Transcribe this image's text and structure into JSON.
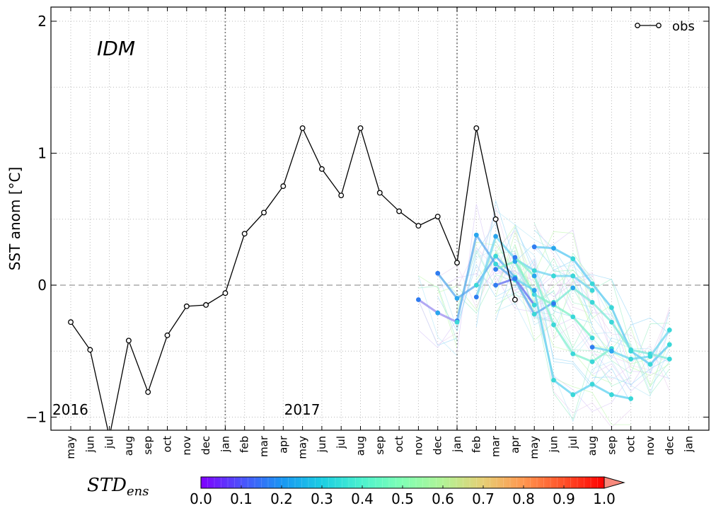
{
  "chart_data": {
    "type": "line",
    "title": "",
    "ylabel": "SST anom [$^\\circ$C]",
    "ylabel_display": "SST anom [°C]",
    "xlabel": "",
    "ylim": [
      -1.1,
      2.1
    ],
    "yticks": [
      -1,
      0,
      1,
      2
    ],
    "ytick_labels": [
      "−1",
      "0",
      "1",
      "2"
    ],
    "model_label": "IDM",
    "months": [
      "may",
      "jun",
      "jul",
      "aug",
      "sep",
      "oct",
      "nov",
      "dec",
      "jan",
      "feb",
      "mar",
      "apr",
      "may",
      "jun",
      "jul",
      "aug",
      "sep",
      "oct",
      "nov",
      "dec",
      "jan",
      "feb",
      "mar",
      "apr",
      "may",
      "jun",
      "jul",
      "aug",
      "sep",
      "oct",
      "nov",
      "dec",
      "jan"
    ],
    "year_markers": [
      {
        "label": "2016",
        "index": 0
      },
      {
        "label": "2017",
        "index": 12
      }
    ],
    "obs": {
      "name": "obs",
      "color": "#000000",
      "values": [
        -0.28,
        -0.49,
        -1.15,
        -0.42,
        -0.81,
        -0.38,
        -0.16,
        -0.15,
        -0.06,
        0.39,
        0.55,
        0.75,
        1.19,
        0.88,
        0.68,
        1.19,
        0.7,
        0.56,
        0.45,
        0.52,
        0.17,
        1.19,
        0.5,
        -0.11
      ]
    },
    "forecasts": [
      {
        "start": 19,
        "values": [
          0.09,
          -0.1,
          0.0,
          0.22,
          0.06
        ],
        "color": "#5aa9ee"
      },
      {
        "start": 20,
        "values": [
          -0.27,
          0.38,
          0.16,
          0.04,
          -0.22,
          -0.13
        ],
        "color": "#5aa9ee"
      },
      {
        "start": 21,
        "values": [
          -0.09,
          0.37,
          0.2,
          0.11,
          0.07,
          0.07,
          -0.04
        ],
        "color": "#6fd4f0"
      },
      {
        "start": 18,
        "values": [
          -0.11,
          -0.21,
          -0.28
        ],
        "color": "#9a8cf0"
      },
      {
        "start": 22,
        "values": [
          0.0,
          0.05,
          -0.15
        ],
        "color": "#5f6ff0"
      },
      {
        "start": 22,
        "values": [
          0.12,
          0.18,
          -0.07,
          -0.15,
          -0.24,
          -0.4
        ],
        "color": "#7ef0c6"
      },
      {
        "start": 23,
        "values": [
          0.21,
          0.07,
          -0.3,
          -0.52,
          -0.58,
          -0.48
        ],
        "color": "#82f0ce"
      },
      {
        "start": 24,
        "values": [
          0.29,
          0.28,
          0.2,
          0.01,
          -0.17,
          -0.5,
          -0.6,
          -0.45
        ],
        "color": "#5cc9f3"
      },
      {
        "start": 23,
        "values": [
          0.05,
          -0.04,
          -0.72,
          -0.83,
          -0.75,
          -0.83,
          -0.86
        ],
        "color": "#5cd2f0"
      },
      {
        "start": 25,
        "values": [
          -0.14,
          -0.02,
          -0.13,
          -0.28,
          -0.49,
          -0.52,
          -0.56
        ],
        "color": "#7ee8d8"
      },
      {
        "start": 27,
        "values": [
          -0.47,
          -0.5,
          -0.56,
          -0.54,
          -0.34
        ],
        "color": "#6ad6ee"
      }
    ],
    "legend": {
      "label": "obs",
      "position": "top-right"
    },
    "grid": true,
    "zero_line": true,
    "separators_at_months": [
      "jan",
      "jan"
    ]
  },
  "colorbar": {
    "label": "STD",
    "label_subscript": "ens",
    "min": 0.0,
    "max": 1.0,
    "ticks": [
      "0.0",
      "0.1",
      "0.2",
      "0.3",
      "0.4",
      "0.5",
      "0.6",
      "0.7",
      "0.8",
      "0.9",
      "1.0"
    ],
    "colormap": "rainbow",
    "extend": "max"
  }
}
